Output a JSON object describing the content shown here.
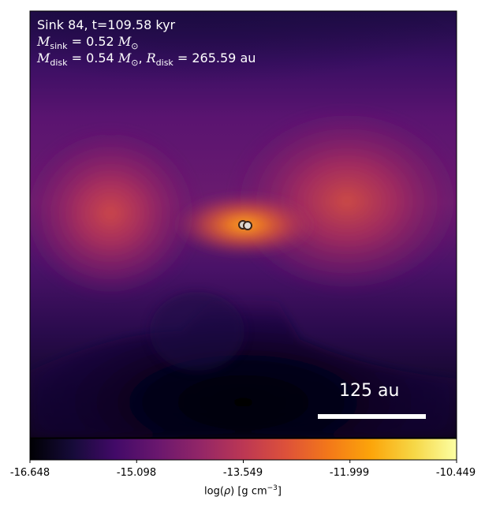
{
  "title": {
    "sink_line": "Sink 84, t=109.58 kyr",
    "msink_symbol": "M",
    "msink_sub": "sink",
    "msink_value": " = 0.52 ",
    "msun_symbol": "M",
    "msun_sub": "⊙",
    "mdisk_symbol": "M",
    "mdisk_sub": "disk",
    "mdisk_value": " = 0.54 ",
    "mdisk_sun_symbol": "M",
    "mdisk_sun_sub": "⊙",
    "separator": ", ",
    "rdisk_symbol": "R",
    "rdisk_sub": "disk",
    "rdisk_value": " = 265.59 au"
  },
  "scale_bar": {
    "label": "125 au"
  },
  "colorbar": {
    "ticks": [
      "-16.648",
      "-15.098",
      "-13.549",
      "-11.999",
      "-10.449"
    ],
    "label_prefix": "log(",
    "label_rho": "ρ",
    "label_mid": ") [g cm",
    "label_exp": "−3",
    "label_suffix": "]",
    "colormap": "inferno"
  },
  "colors": {
    "frame": "#000000",
    "text": "#ffffff",
    "sink_outline": "#3a2418",
    "sink_fill": "#d9d3cc"
  }
}
